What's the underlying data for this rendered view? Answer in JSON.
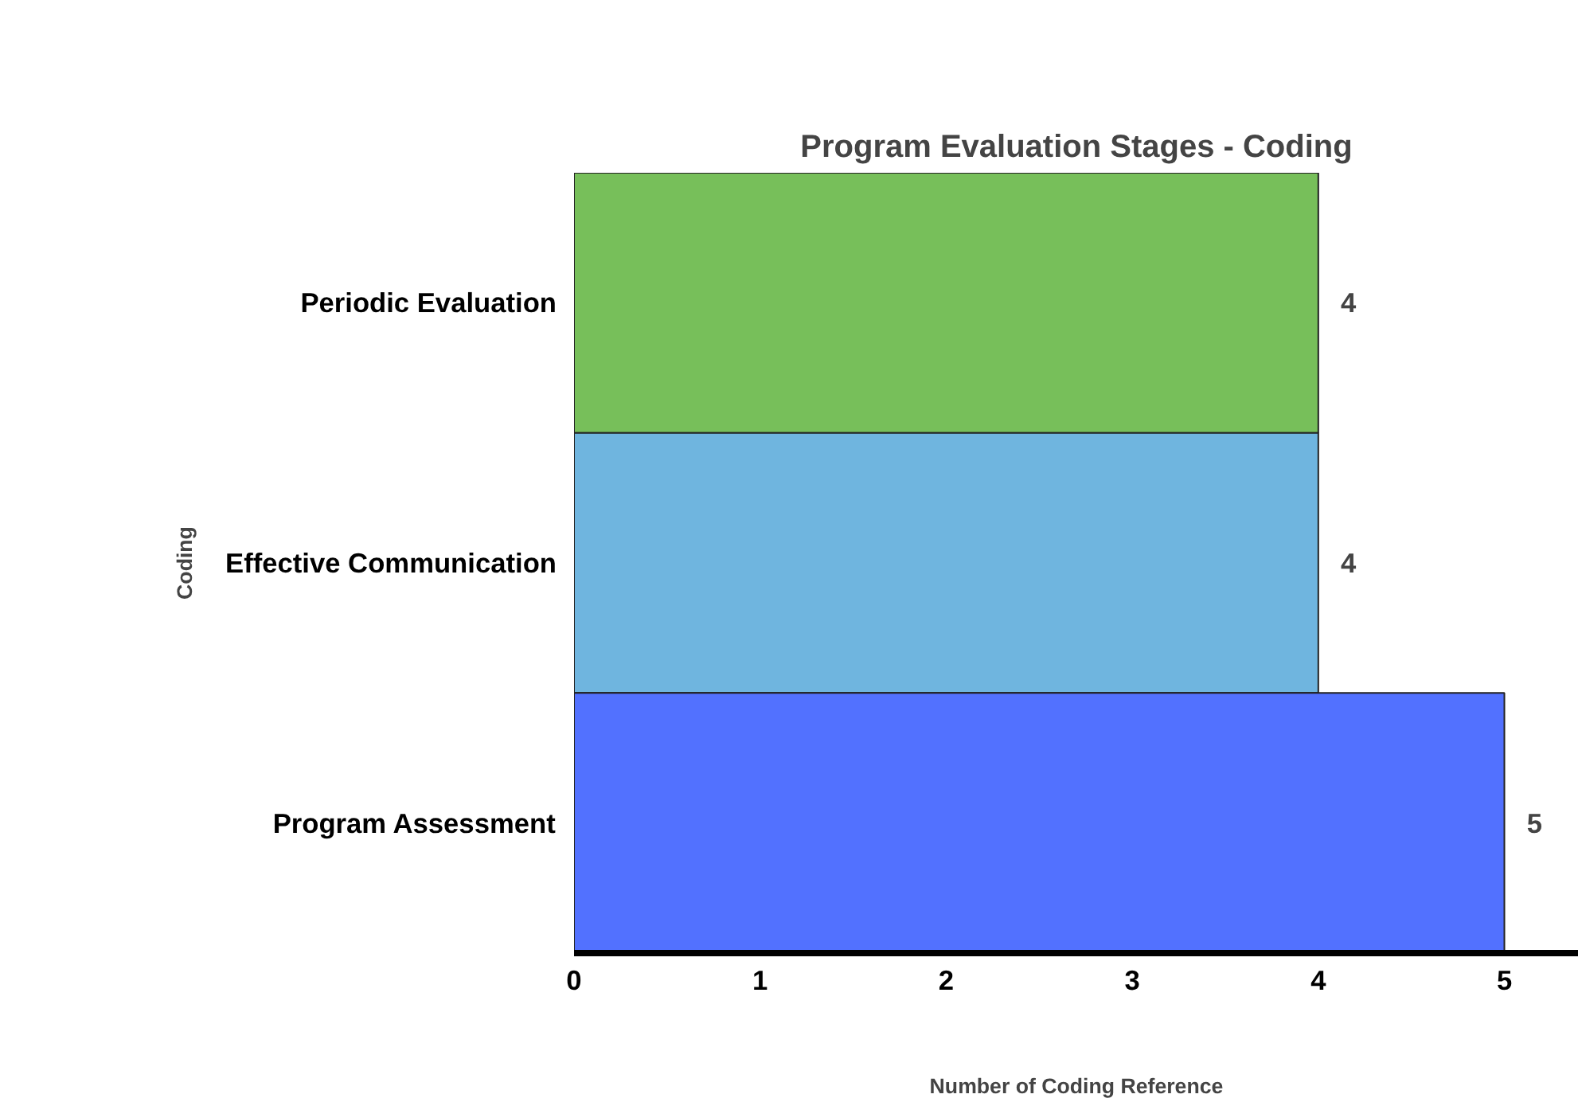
{
  "chart_data": {
    "type": "bar",
    "orientation": "horizontal",
    "title": "Program Evaluation Stages - Coding",
    "xlabel": "Number of Coding Reference",
    "ylabel": "Coding",
    "categories": [
      "Periodic Evaluation",
      "Effective Communication",
      "Program Assessment"
    ],
    "values": [
      4,
      4,
      5
    ],
    "colors": [
      "#77bf5a",
      "#6fb5df",
      "#5271ff"
    ],
    "xlim": [
      0,
      5.4
    ],
    "xticks": [
      0,
      1,
      2,
      3,
      4,
      5
    ],
    "data_labels": true,
    "grid": false
  }
}
